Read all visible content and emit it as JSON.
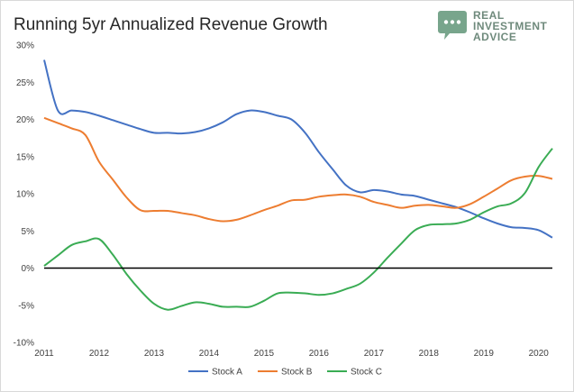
{
  "brand": {
    "name": "REAL INVESTMENT ADVICE",
    "lines": [
      "REAL",
      "INVESTMENT",
      "ADVICE"
    ],
    "icon": "chat-bubble-icon",
    "color": "#6f8a7c"
  },
  "chart_data": {
    "type": "line",
    "title": "Running 5yr Annualized Revenue Growth",
    "xlabel": "",
    "ylabel": "",
    "xlim": [
      2011,
      2020.25
    ],
    "ylim": [
      -10,
      30
    ],
    "x_ticks": [
      "2011",
      "2012",
      "2013",
      "2014",
      "2015",
      "2016",
      "2017",
      "2018",
      "2019",
      "2020"
    ],
    "y_ticks": [
      "30%",
      "25%",
      "20%",
      "15%",
      "10%",
      "5%",
      "0%",
      "-5%",
      "-10%"
    ],
    "grid": false,
    "legend_position": "bottom",
    "zero_line": true,
    "series": [
      {
        "name": "Stock A",
        "color": "#4472c4",
        "x": [
          2011.0,
          2011.25,
          2011.5,
          2011.75,
          2012.0,
          2012.25,
          2012.5,
          2012.75,
          2013.0,
          2013.25,
          2013.5,
          2013.75,
          2014.0,
          2014.25,
          2014.5,
          2014.75,
          2015.0,
          2015.25,
          2015.5,
          2015.75,
          2016.0,
          2016.25,
          2016.5,
          2016.75,
          2017.0,
          2017.25,
          2017.5,
          2017.75,
          2018.0,
          2018.25,
          2018.5,
          2018.75,
          2019.0,
          2019.25,
          2019.5,
          2019.75,
          2020.0,
          2020.25
        ],
        "values": [
          28.0,
          21.2,
          21.2,
          21.0,
          20.5,
          19.9,
          19.3,
          18.7,
          18.2,
          18.2,
          18.1,
          18.3,
          18.8,
          19.6,
          20.7,
          21.2,
          21.0,
          20.5,
          20.0,
          18.2,
          15.6,
          13.3,
          11.1,
          10.2,
          10.5,
          10.3,
          9.9,
          9.7,
          9.2,
          8.7,
          8.2,
          7.5,
          6.7,
          6.0,
          5.5,
          5.4,
          5.1,
          4.1
        ]
      },
      {
        "name": "Stock B",
        "color": "#ed7d31",
        "x": [
          2011.0,
          2011.25,
          2011.5,
          2011.75,
          2012.0,
          2012.25,
          2012.5,
          2012.75,
          2013.0,
          2013.25,
          2013.5,
          2013.75,
          2014.0,
          2014.25,
          2014.5,
          2014.75,
          2015.0,
          2015.25,
          2015.5,
          2015.75,
          2016.0,
          2016.25,
          2016.5,
          2016.75,
          2017.0,
          2017.25,
          2017.5,
          2017.75,
          2018.0,
          2018.25,
          2018.5,
          2018.75,
          2019.0,
          2019.25,
          2019.5,
          2019.75,
          2020.0,
          2020.25
        ],
        "values": [
          20.2,
          19.5,
          18.8,
          17.9,
          14.3,
          11.9,
          9.5,
          7.8,
          7.7,
          7.7,
          7.4,
          7.1,
          6.6,
          6.3,
          6.5,
          7.1,
          7.8,
          8.4,
          9.1,
          9.2,
          9.6,
          9.8,
          9.9,
          9.6,
          8.9,
          8.5,
          8.1,
          8.4,
          8.5,
          8.3,
          8.1,
          8.6,
          9.6,
          10.7,
          11.8,
          12.3,
          12.4,
          12.0
        ]
      },
      {
        "name": "Stock C",
        "color": "#3aac54",
        "x": [
          2011.0,
          2011.25,
          2011.5,
          2011.75,
          2012.0,
          2012.25,
          2012.5,
          2012.75,
          2013.0,
          2013.25,
          2013.5,
          2013.75,
          2014.0,
          2014.25,
          2014.5,
          2014.75,
          2015.0,
          2015.25,
          2015.5,
          2015.75,
          2016.0,
          2016.25,
          2016.5,
          2016.75,
          2017.0,
          2017.25,
          2017.5,
          2017.75,
          2018.0,
          2018.25,
          2018.5,
          2018.75,
          2019.0,
          2019.25,
          2019.5,
          2019.75,
          2020.0,
          2020.25
        ],
        "values": [
          0.3,
          1.7,
          3.1,
          3.6,
          3.9,
          1.8,
          -0.8,
          -3.0,
          -4.8,
          -5.6,
          -5.1,
          -4.6,
          -4.8,
          -5.2,
          -5.2,
          -5.2,
          -4.4,
          -3.4,
          -3.3,
          -3.4,
          -3.6,
          -3.4,
          -2.8,
          -2.1,
          -0.6,
          1.4,
          3.3,
          5.1,
          5.8,
          5.9,
          6.0,
          6.5,
          7.5,
          8.3,
          8.7,
          10.1,
          13.6,
          16.1
        ]
      }
    ]
  }
}
